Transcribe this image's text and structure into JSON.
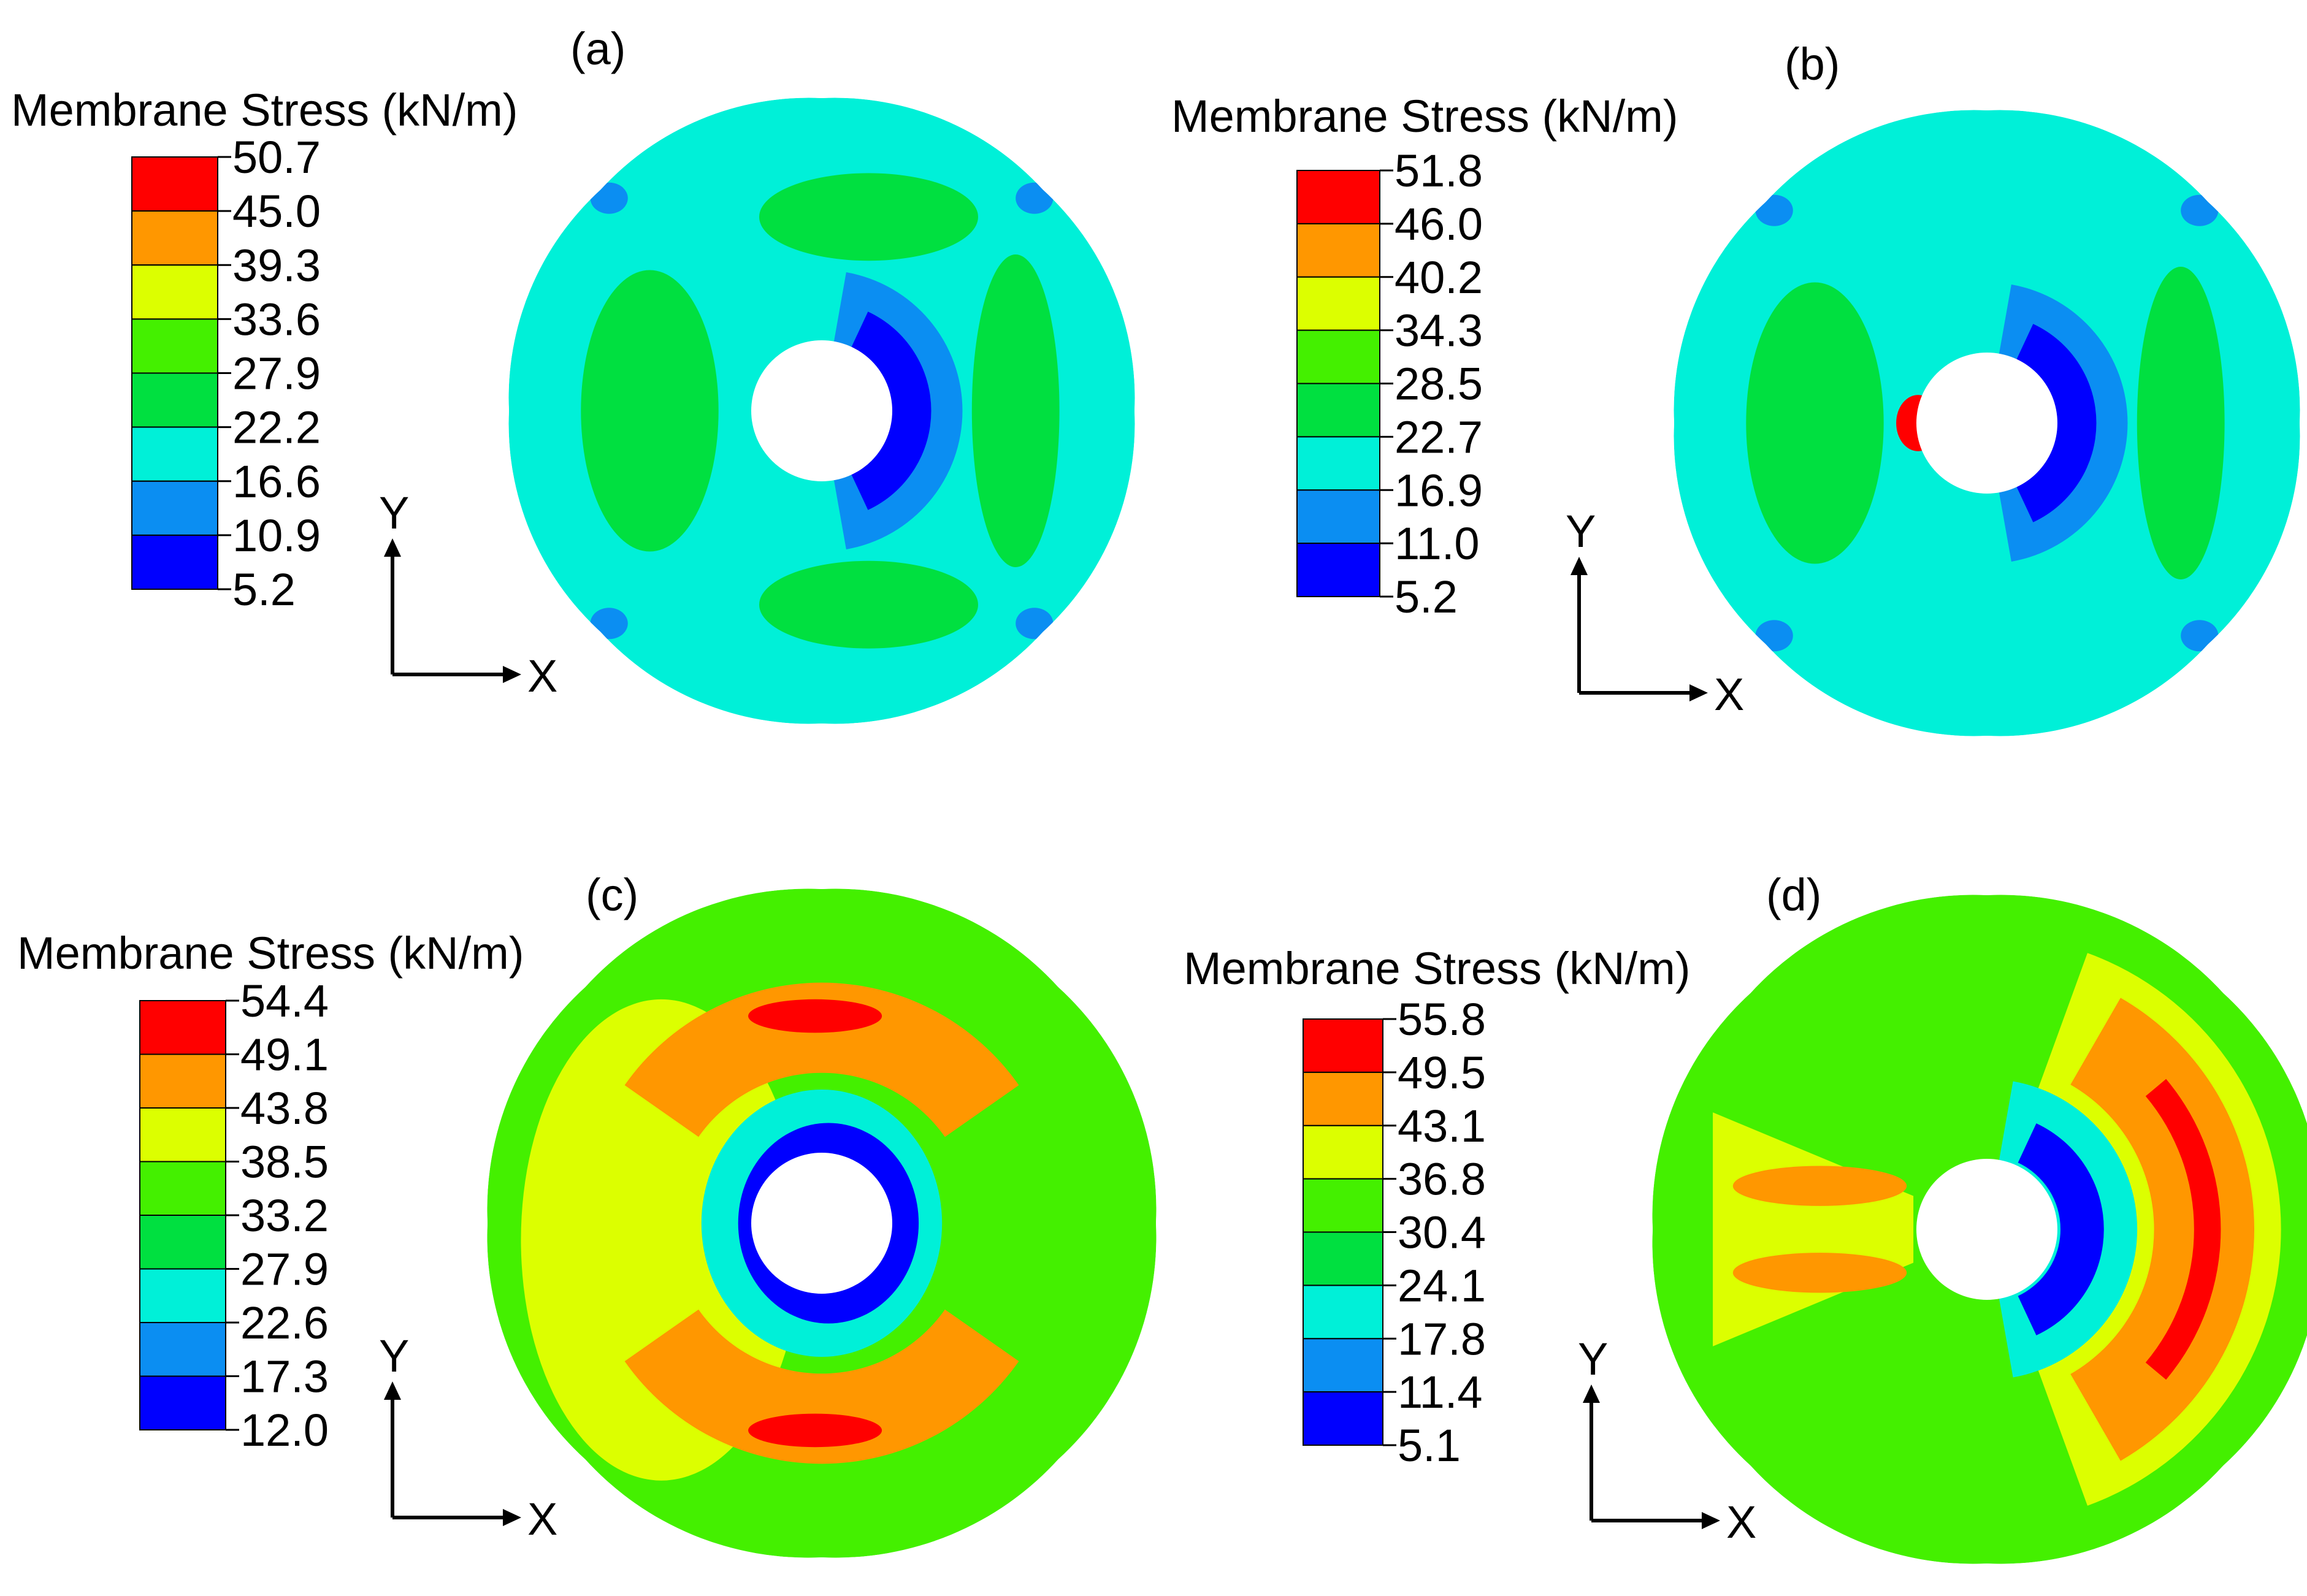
{
  "figure": {
    "colormap": [
      "#0000ff",
      "#0b8ef2",
      "#00f0d8",
      "#00e040",
      "#44f000",
      "#dcff00",
      "#ff9700",
      "#ff0000"
    ],
    "panels": [
      {
        "label": "(a)",
        "legend_title": "Membrane Stress (kN/m)",
        "ticks": [
          "50.7",
          "45.0",
          "39.3",
          "33.6",
          "27.9",
          "22.2",
          "16.6",
          "10.9",
          "5.2"
        ],
        "axis_x": "X",
        "axis_y": "Y",
        "base_level": 2,
        "regions": [
          {
            "shape": "lobe-left",
            "level": 3
          },
          {
            "shape": "lobe-right",
            "level": 3
          },
          {
            "shape": "lobe-top-right",
            "level": 3
          },
          {
            "shape": "lobe-bottom-right",
            "level": 3
          },
          {
            "shape": "ring-right-outer",
            "level": 1
          },
          {
            "shape": "ring-right-inner",
            "level": 0
          },
          {
            "shape": "corner-spots",
            "level": 1
          }
        ]
      },
      {
        "label": "(b)",
        "legend_title": "Membrane Stress (kN/m)",
        "ticks": [
          "51.8",
          "46.0",
          "40.2",
          "34.3",
          "28.5",
          "22.7",
          "16.9",
          "11.0",
          "5.2"
        ],
        "axis_x": "X",
        "axis_y": "Y",
        "base_level": 2,
        "regions": [
          {
            "shape": "lobe-left",
            "level": 3
          },
          {
            "shape": "lobe-right",
            "level": 3
          },
          {
            "shape": "ring-right-outer",
            "level": 1
          },
          {
            "shape": "ring-right-inner",
            "level": 0
          },
          {
            "shape": "hot-left-spot",
            "level": 7
          },
          {
            "shape": "corner-spots",
            "level": 1
          }
        ]
      },
      {
        "label": "(c)",
        "legend_title": "Membrane Stress (kN/m)",
        "ticks": [
          "54.4",
          "49.1",
          "43.8",
          "38.5",
          "33.2",
          "27.9",
          "22.6",
          "17.3",
          "12.0"
        ],
        "axis_x": "X",
        "axis_y": "Y",
        "base_level": 4,
        "regions": [
          {
            "shape": "wide-left",
            "level": 5
          },
          {
            "shape": "band-top",
            "level": 6
          },
          {
            "shape": "band-bottom",
            "level": 6
          },
          {
            "shape": "hot-top",
            "level": 7
          },
          {
            "shape": "hot-bottom",
            "level": 7
          },
          {
            "shape": "ring-center",
            "level": 2
          },
          {
            "shape": "ring-center-inner",
            "level": 0
          }
        ]
      },
      {
        "label": "(d)",
        "legend_title": "Membrane Stress (kN/m)",
        "ticks": [
          "55.8",
          "49.5",
          "43.1",
          "36.8",
          "30.4",
          "24.1",
          "17.8",
          "11.4",
          "5.1"
        ],
        "axis_x": "X",
        "axis_y": "Y",
        "base_level": 4,
        "regions": [
          {
            "shape": "band-right-outer",
            "level": 5
          },
          {
            "shape": "band-right",
            "level": 6
          },
          {
            "shape": "hot-right",
            "level": 7
          },
          {
            "shape": "fan-left",
            "level": 5
          },
          {
            "shape": "lobe-left-upper",
            "level": 6
          },
          {
            "shape": "lobe-left-lower",
            "level": 6
          },
          {
            "shape": "ring-right-outer",
            "level": 2
          },
          {
            "shape": "ring-right-inner",
            "level": 0
          }
        ]
      }
    ]
  }
}
